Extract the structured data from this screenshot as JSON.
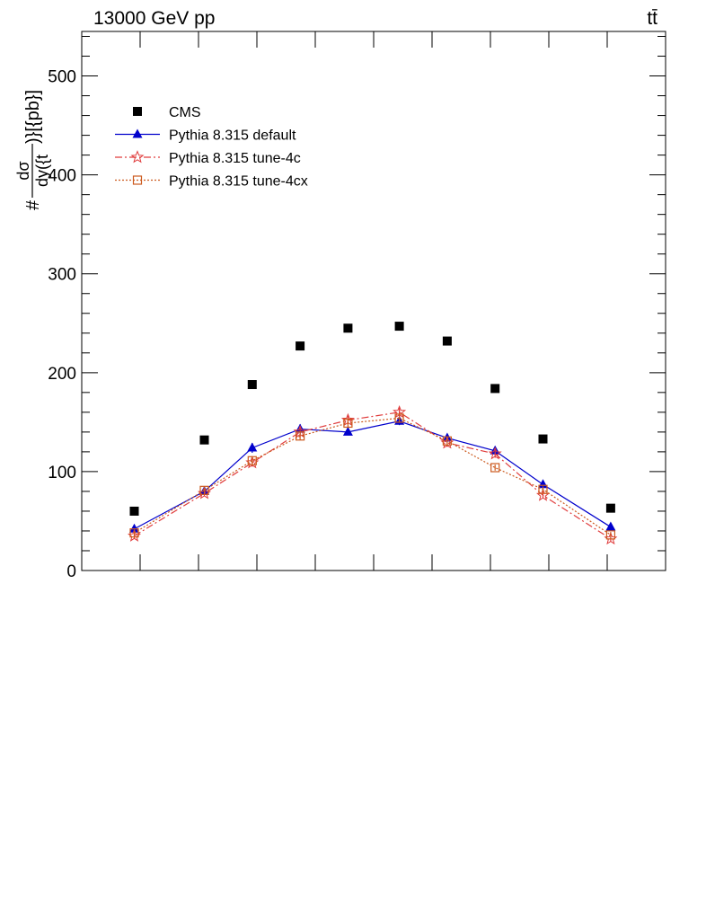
{
  "header": {
    "energy_label": "13000 GeV pp",
    "process_label": "tt̄"
  },
  "chart_data": {
    "type": "line",
    "title": "",
    "ylabel": "#frac{dσ}{dy(t)}[{pb}]",
    "ylabel_parts": {
      "prefix": "#",
      "numerator": "dσ",
      "denominator": "dy({t",
      "suffix": ")}[{pb}]"
    },
    "xlabel": "",
    "ylim": [
      0,
      545
    ],
    "xlim": [
      -2.5,
      2.5
    ],
    "yticks": [
      0,
      100,
      200,
      300,
      400,
      500
    ],
    "ytick_labels": [
      "0",
      "100",
      "200",
      "300",
      "400",
      "500"
    ],
    "grid": false,
    "legend_position": "top-left",
    "x": [
      -2.05,
      -1.45,
      -1.04,
      -0.63,
      -0.22,
      0.22,
      0.63,
      1.04,
      1.45,
      2.03
    ],
    "series": [
      {
        "name": "CMS",
        "color": "#000000",
        "marker": "square-filled",
        "line": "none",
        "values": [
          60,
          132,
          188,
          227,
          245,
          247,
          232,
          184,
          133,
          63
        ]
      },
      {
        "name": "Pythia 8.315 default",
        "color": "#0000cc",
        "marker": "triangle-filled",
        "line": "solid",
        "values": [
          42,
          80,
          124,
          143,
          140,
          151,
          134,
          121,
          87,
          44
        ],
        "errors": [
          3,
          3,
          5,
          5,
          3,
          4,
          4,
          4,
          4,
          3
        ]
      },
      {
        "name": "Pythia 8.315 tune-4c",
        "color": "#e03c3c",
        "marker": "star-open",
        "line": "dashdot",
        "values": [
          35,
          78,
          109,
          140,
          152,
          160,
          129,
          118,
          76,
          32
        ],
        "errors": [
          3,
          3,
          4,
          5,
          5,
          5,
          4,
          4,
          3,
          3
        ]
      },
      {
        "name": "Pythia 8.315 tune-4cx",
        "color": "#cc5a1e",
        "marker": "square-open",
        "line": "dotted",
        "values": [
          38,
          81,
          111,
          136,
          149,
          154,
          131,
          104,
          82,
          36
        ],
        "errors": [
          3,
          3,
          4,
          4,
          4,
          4,
          4,
          3,
          3,
          3
        ]
      }
    ]
  }
}
